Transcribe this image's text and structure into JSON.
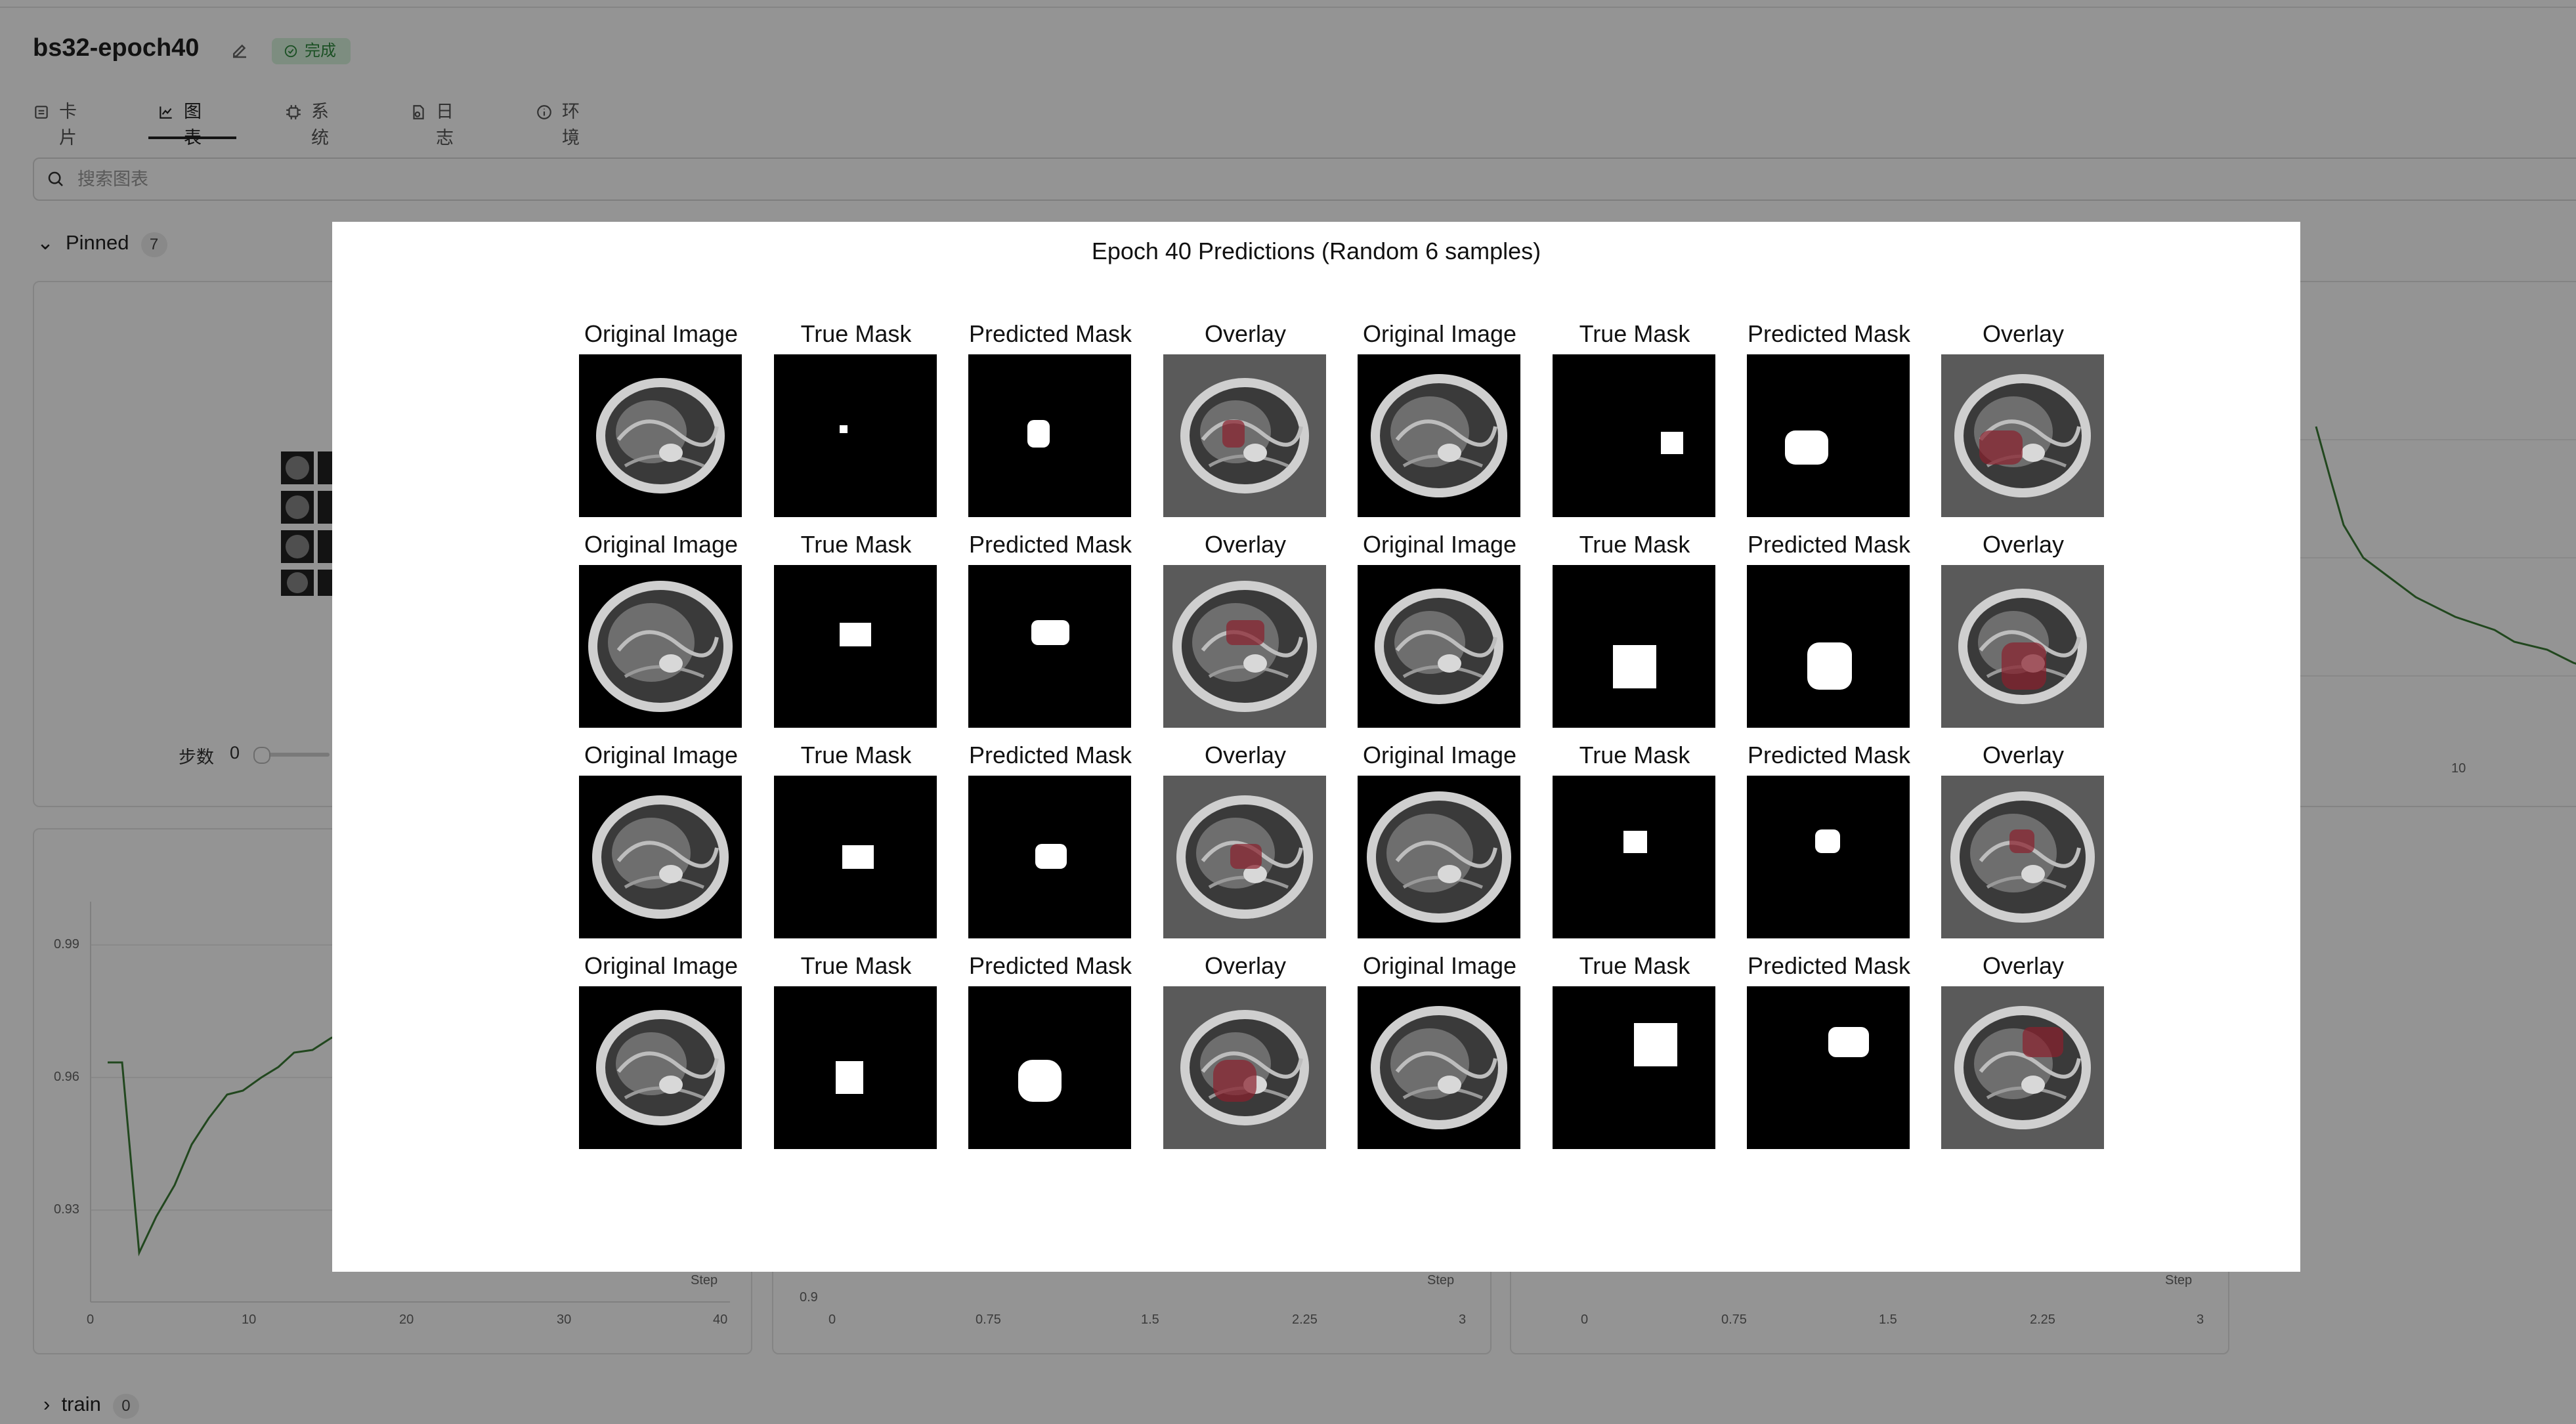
{
  "header": {
    "run_title": "bs32-epoch40",
    "status_label": "完成"
  },
  "tabs": [
    {
      "label": "卡片",
      "icon": "card-icon",
      "active": false
    },
    {
      "label": "图表",
      "icon": "chart-icon",
      "active": true
    },
    {
      "label": "系统",
      "icon": "chip-icon",
      "active": false
    },
    {
      "label": "日志",
      "icon": "log-icon",
      "active": false
    },
    {
      "label": "环境",
      "icon": "info-icon",
      "active": false
    }
  ],
  "search": {
    "placeholder": "搜索图表",
    "value": ""
  },
  "sections": {
    "pinned_label": "Pinned",
    "pinned_count": "7",
    "train_label": "train",
    "train_count": "0"
  },
  "media_card": {
    "step_label": "步数",
    "step_value": "0"
  },
  "charts": {
    "left_chart": {
      "y_ticks": [
        "0.99",
        "0.96",
        "0.93"
      ],
      "x_ticks": [
        "0",
        "10",
        "20",
        "30",
        "40"
      ],
      "x_axis_label": "Step"
    },
    "middle_chart": {
      "y_ticks": [
        "0.9"
      ],
      "x_ticks": [
        "0",
        "0.75",
        "1.5",
        "2.25",
        "3"
      ],
      "x_axis_label": "Step"
    },
    "right_chart": {
      "x_ticks": [
        "0",
        "0.75",
        "1.5",
        "2.25",
        "3"
      ],
      "x_axis_label": "Step"
    },
    "top_right_chart": {
      "x_ticks": [
        "10"
      ]
    }
  },
  "modal": {
    "title": "Epoch 40 Predictions (Random 6 samples)",
    "column_titles": [
      "Original Image",
      "True Mask",
      "Predicted Mask",
      "Overlay",
      "Original Image",
      "True Mask",
      "Predicted Mask",
      "Overlay"
    ],
    "rows": 4,
    "colors": {
      "overlay_tint": "#8a1f2c",
      "mask": "#ffffff",
      "mask_bg": "#000000"
    }
  }
}
